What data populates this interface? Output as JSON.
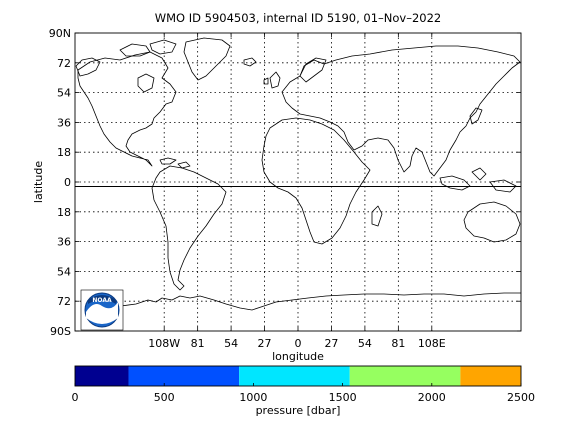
{
  "title": "WMO ID 5904503, internal ID 5190, 01–Nov–2022",
  "map": {
    "xlabel": "longitude",
    "ylabel": "latitude",
    "xlim": [
      -180,
      180
    ],
    "ylim": [
      -90,
      90
    ],
    "x_ticks": [
      {
        "value": -108,
        "label": "108W"
      },
      {
        "value": -81,
        "label": "81"
      },
      {
        "value": -54,
        "label": "54"
      },
      {
        "value": -27,
        "label": "27"
      },
      {
        "value": 0,
        "label": "0"
      },
      {
        "value": 27,
        "label": "27"
      },
      {
        "value": 54,
        "label": "54"
      },
      {
        "value": 81,
        "label": "81"
      },
      {
        "value": 108,
        "label": "108E"
      }
    ],
    "y_ticks": [
      {
        "value": 90,
        "label": "90N"
      },
      {
        "value": 72,
        "label": "72"
      },
      {
        "value": 54,
        "label": "54"
      },
      {
        "value": 36,
        "label": "36"
      },
      {
        "value": 18,
        "label": "18"
      },
      {
        "value": 0,
        "label": "0"
      },
      {
        "value": -18,
        "label": "18"
      },
      {
        "value": -36,
        "label": "36"
      },
      {
        "value": -54,
        "label": "54"
      },
      {
        "value": -72,
        "label": "72"
      },
      {
        "value": -90,
        "label": "90S"
      }
    ],
    "grid": true,
    "equator_line": true,
    "logo": {
      "text": "NOAA",
      "placement": "bottom-left"
    }
  },
  "colorbar": {
    "label": "pressure [dbar]",
    "range": [
      0,
      2500
    ],
    "tick_values": [
      0,
      500,
      1000,
      1500,
      2000,
      2500
    ],
    "segments": [
      {
        "from": 0,
        "to": 300,
        "color": "#000090"
      },
      {
        "from": 300,
        "to": 920,
        "color": "#0050ff"
      },
      {
        "from": 920,
        "to": 1540,
        "color": "#00e6ff"
      },
      {
        "from": 1540,
        "to": 2160,
        "color": "#96ff60"
      },
      {
        "from": 2160,
        "to": 2500,
        "color": "#ffa500"
      }
    ]
  }
}
